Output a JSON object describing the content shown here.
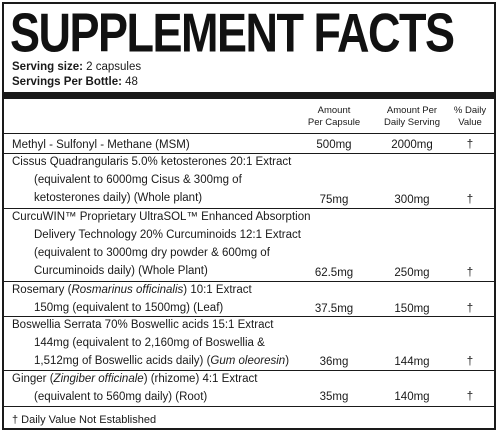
{
  "title": "SUPPLEMENT FACTS",
  "serving_size": {
    "label": "Serving size:",
    "value": "2 capsules"
  },
  "servings_per": {
    "label": "Servings Per Bottle:",
    "value": "48"
  },
  "headers": {
    "per_capsule": [
      "Amount",
      "Per Capsule"
    ],
    "per_serving": [
      "Amount Per",
      "Daily Serving"
    ],
    "daily_value": [
      "% Daily",
      "Value"
    ]
  },
  "rows": [
    {
      "lines": [
        "Methyl - Sulfonyl - Methane (MSM)"
      ],
      "per_capsule": "500mg",
      "per_serving": "2000mg",
      "dv": "†"
    },
    {
      "lines": [
        "Cissus Quadrangularis 5.0% ketosterones 20:1 Extract",
        "(equivalent to 6000mg Cisus & 300mg of",
        "ketosterones daily) (Whole plant)"
      ],
      "per_capsule": "75mg",
      "per_serving": "300mg",
      "dv": "†"
    },
    {
      "lines": [
        "CurcuWIN™ Proprietary UltraSOL™ Enhanced Absorption",
        "Delivery Technology 20% Curcuminoids 12:1 Extract",
        "(equivalent to 3000mg dry powder & 600mg of",
        "Curcuminoids daily)  (Whole Plant)"
      ],
      "per_capsule": "62.5mg",
      "per_serving": "250mg",
      "dv": "†"
    },
    {
      "lines": [
        "Rosemary (",
        "Rosmarinus officinalis",
        ") 10:1 Extract",
        "150mg (equivalent to 1500mg) (Leaf)"
      ],
      "per_capsule": "37.5mg",
      "per_serving": "150mg",
      "dv": "†"
    },
    {
      "lines": [
        "Boswellia Serrata 70% Boswellic acids 15:1 Extract",
        "144mg (equivalent to 2,160mg of Boswellia &",
        "1,512mg of Boswellic acids daily) (",
        "Gum oleoresin",
        ")"
      ],
      "per_capsule": "36mg",
      "per_serving": "144mg",
      "dv": "†"
    },
    {
      "lines": [
        "Ginger (",
        "Zingiber officinale",
        ") (rhizome) 4:1 Extract",
        "(equivalent to 560mg daily) (Root)"
      ],
      "per_capsule": "35mg",
      "per_serving": "140mg",
      "dv": "†"
    }
  ],
  "footnote": "† Daily Value Not Established"
}
